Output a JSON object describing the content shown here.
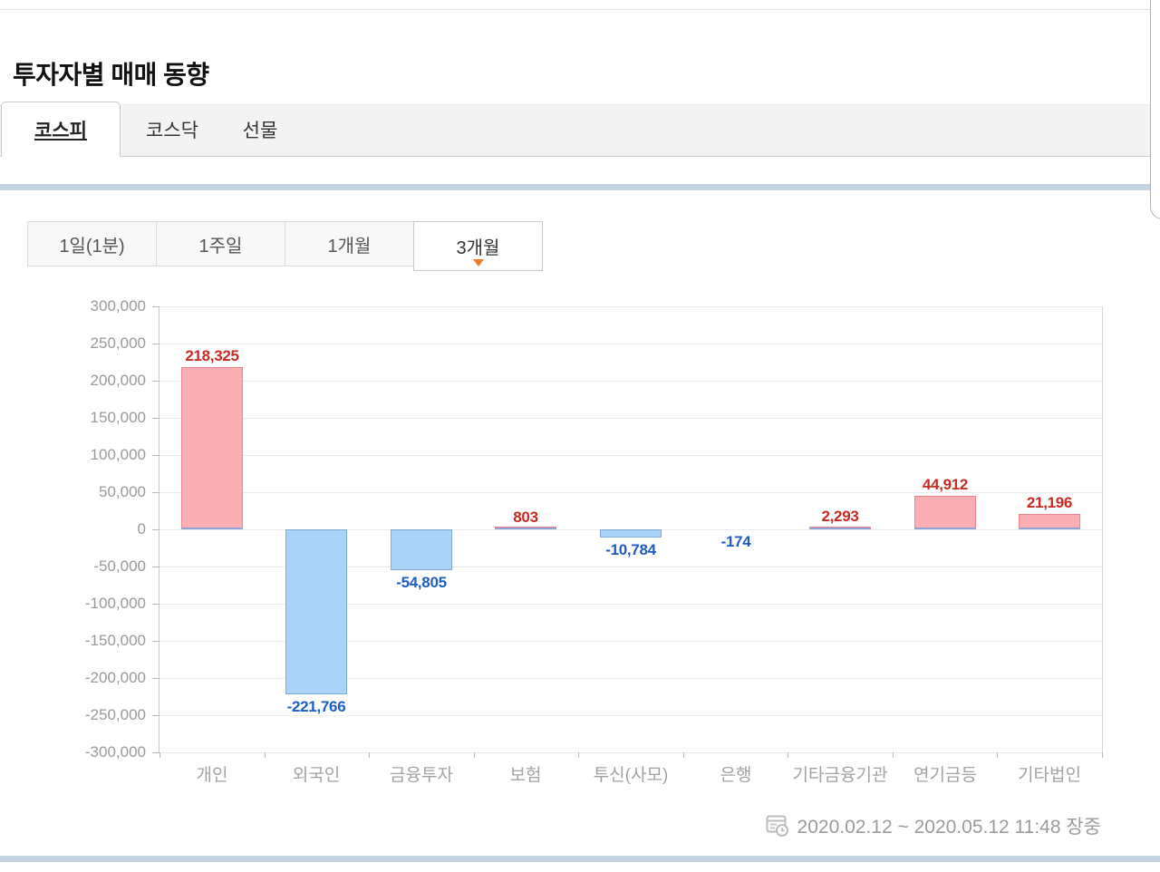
{
  "header": {
    "title": "투자자별 매매 동향"
  },
  "market_tabs": {
    "items": [
      {
        "label": "코스피",
        "active": true
      },
      {
        "label": "코스닥",
        "active": false
      },
      {
        "label": "선물",
        "active": false
      }
    ]
  },
  "period_tabs": {
    "items": [
      {
        "label": "1일(1분)",
        "active": false
      },
      {
        "label": "1주일",
        "active": false
      },
      {
        "label": "1개월",
        "active": false
      },
      {
        "label": "3개월",
        "active": true
      }
    ]
  },
  "chart_data": {
    "type": "bar",
    "categories": [
      "개인",
      "외국인",
      "금융투자",
      "보험",
      "투신(사모)",
      "은행",
      "기타금융기관",
      "연기금등",
      "기타법인"
    ],
    "values": [
      218325,
      -221766,
      -54805,
      803,
      -10784,
      -174,
      2293,
      44912,
      21196
    ],
    "value_labels": [
      "218,325",
      "-221,766",
      "-54,805",
      "803",
      "-10,784",
      "-174",
      "2,293",
      "44,912",
      "21,196"
    ],
    "ylim": [
      -300000,
      300000
    ],
    "ytick_step": 50000,
    "ytick_labels": [
      "300,000",
      "250,000",
      "200,000",
      "150,000",
      "100,000",
      "50,000",
      "0",
      "-50,000",
      "-100,000",
      "-150,000",
      "-200,000",
      "-250,000",
      "-300,000"
    ],
    "grid": true,
    "legend": "none",
    "positive_fill": "#fbaeb4",
    "positive_border": "#ee838c",
    "negative_fill": "#abd3f8",
    "negative_border": "#7fa9d9",
    "positive_label_color": "#c92a21",
    "negative_label_color": "#1f5dc6",
    "zero_edge_color": "#8ea3d8"
  },
  "footer": {
    "icon": "calendar-clock-icon",
    "caption": "2020.02.12 ~ 2020.05.12 11:48 장중"
  },
  "colors": {
    "accent_band": "#c6d4e2",
    "active_tab_marker": "#f0782a"
  }
}
